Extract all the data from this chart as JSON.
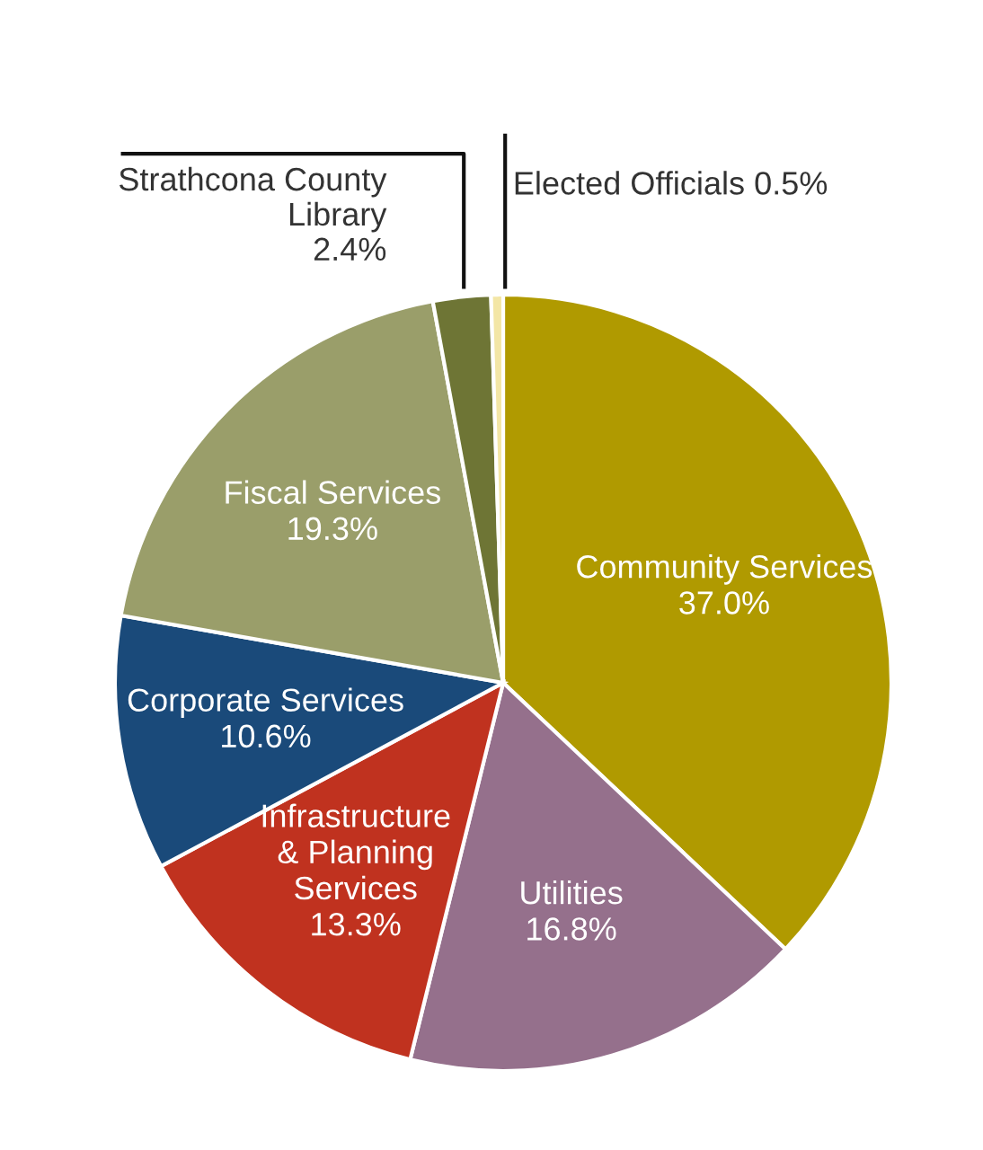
{
  "chart_data": {
    "type": "pie",
    "categories": [
      "Community Services",
      "Utilities",
      "Infrastructure\n& Planning\nServices",
      "Corporate Services",
      "Fiscal Services",
      "Strathcona County\nLibrary",
      "Elected Officials"
    ],
    "values": [
      37.0,
      16.8,
      13.3,
      10.6,
      19.3,
      2.4,
      0.5
    ],
    "value_labels": [
      "37.0%",
      "16.8%",
      "13.3%",
      "10.6%",
      "19.3%",
      "2.4%",
      "0.5%"
    ],
    "colors": [
      "#b09a00",
      "#95708c",
      "#c0321f",
      "#1a4a7a",
      "#9a9e6a",
      "#6e7535",
      "#f3e6a6"
    ]
  }
}
